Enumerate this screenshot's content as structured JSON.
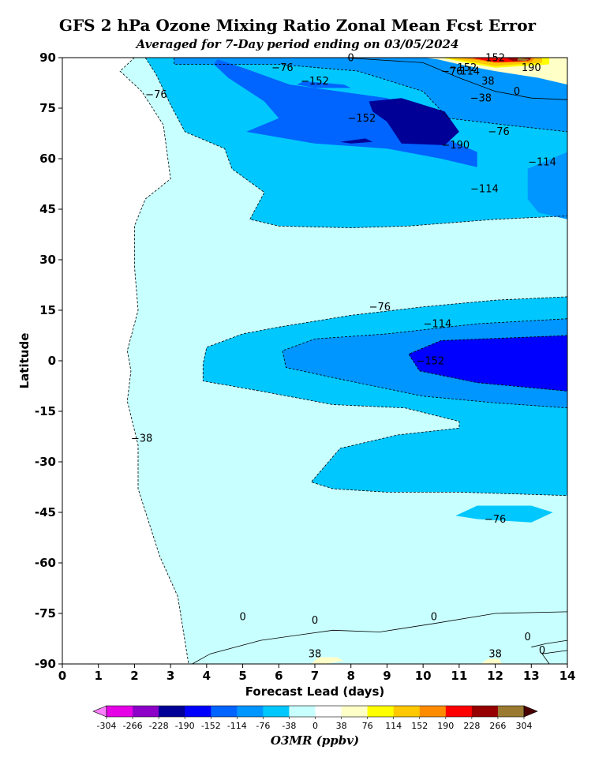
{
  "title": "GFS 2 hPa Ozone Mixing Ratio Zonal Mean Fcst Error",
  "subtitle": "Averaged for 7-Day period ending on 03/05/2024",
  "chart_data": {
    "type": "heatmap",
    "subtype": "filled-contour",
    "title": "GFS 2 hPa Ozone Mixing Ratio Zonal Mean Fcst Error",
    "subtitle": "Averaged for 7-Day period ending on 03/05/2024",
    "xlabel": "Forecast Lead (days)",
    "ylabel": "Latitude",
    "xlim": [
      0,
      14
    ],
    "ylim": [
      -90,
      90
    ],
    "xticks": [
      0,
      1,
      2,
      3,
      4,
      5,
      6,
      7,
      8,
      9,
      10,
      11,
      12,
      13,
      14
    ],
    "yticks": [
      90,
      75,
      60,
      45,
      30,
      15,
      0,
      -15,
      -30,
      -45,
      -60,
      -75,
      -90
    ],
    "colorbar": {
      "label": "O3MR (ppbv)",
      "levels": [
        -304,
        -266,
        -228,
        -190,
        -152,
        -114,
        -76,
        -38,
        0,
        38,
        76,
        114,
        152,
        190,
        228,
        266,
        304
      ],
      "colors": [
        "#e600e6",
        "#8c00c8",
        "#000096",
        "#0000ff",
        "#0064ff",
        "#0096ff",
        "#00c8ff",
        "#c8ffff",
        "#ffffff",
        "#ffffc8",
        "#ffff00",
        "#ffc800",
        "#ff8c00",
        "#ff0000",
        "#960000",
        "#9a7a30"
      ],
      "under_color": "#ff80ff",
      "over_color": "#4a0000"
    },
    "contour_labels": [
      {
        "text": "−76",
        "x": 2.6,
        "y": 78
      },
      {
        "text": "−76",
        "x": 6.1,
        "y": 86
      },
      {
        "text": "0",
        "x": 8.0,
        "y": 89
      },
      {
        "text": "−152",
        "x": 7.0,
        "y": 82
      },
      {
        "text": "−152",
        "x": 8.3,
        "y": 71
      },
      {
        "text": "−152",
        "x": 11.1,
        "y": 86
      },
      {
        "text": "−76",
        "x": 10.8,
        "y": 85
      },
      {
        "text": "114",
        "x": 11.3,
        "y": 85
      },
      {
        "text": "152",
        "x": 12.0,
        "y": 89
      },
      {
        "text": "190",
        "x": 13.0,
        "y": 86
      },
      {
        "text": "38",
        "x": 11.8,
        "y": 82
      },
      {
        "text": "−38",
        "x": 11.6,
        "y": 77
      },
      {
        "text": "0",
        "x": 12.6,
        "y": 79
      },
      {
        "text": "−76",
        "x": 12.1,
        "y": 67
      },
      {
        "text": "−190",
        "x": 10.9,
        "y": 63
      },
      {
        "text": "−114",
        "x": 13.3,
        "y": 58
      },
      {
        "text": "−114",
        "x": 11.7,
        "y": 50
      },
      {
        "text": "−76",
        "x": 8.8,
        "y": 15
      },
      {
        "text": "−114",
        "x": 10.4,
        "y": 10
      },
      {
        "text": "−152",
        "x": 10.2,
        "y": -1
      },
      {
        "text": "−38",
        "x": 2.2,
        "y": -24
      },
      {
        "text": "−76",
        "x": 12.0,
        "y": -48
      },
      {
        "text": "0",
        "x": 5.0,
        "y": -77
      },
      {
        "text": "0",
        "x": 7.0,
        "y": -78
      },
      {
        "text": "0",
        "x": 10.3,
        "y": -77
      },
      {
        "text": "38",
        "x": 7.0,
        "y": -88
      },
      {
        "text": "38",
        "x": 12.0,
        "y": -88
      },
      {
        "text": "0",
        "x": 12.9,
        "y": -83
      },
      {
        "text": "0",
        "x": 13.3,
        "y": -87
      }
    ]
  }
}
